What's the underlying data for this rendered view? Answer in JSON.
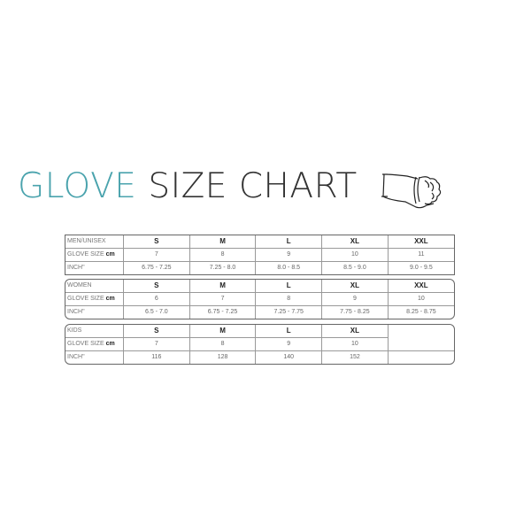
{
  "title": {
    "part1": "GLOVE",
    "part2": "SIZE CHART",
    "accent": "#4aa3ad"
  },
  "icon": "hand-measure-icon",
  "tables": [
    {
      "name": "MEN/UNISEX",
      "sizes": [
        "S",
        "M",
        "L",
        "XL",
        "XXL"
      ],
      "glove_label": "GLOVE SIZE",
      "unit": "cm",
      "cm": [
        "7",
        "8",
        "9",
        "10",
        "11"
      ],
      "inch_label": "INCH\"",
      "inch": [
        "6.75 - 7.25",
        "7.25 - 8.0",
        "8.0 - 8.5",
        "8.5 - 9.0",
        "9.0 - 9.5"
      ]
    },
    {
      "name": "WOMEN",
      "sizes": [
        "S",
        "M",
        "L",
        "XL",
        "XXL"
      ],
      "glove_label": "GLOVE SIZE",
      "unit": "cm",
      "cm": [
        "6",
        "7",
        "8",
        "9",
        "10"
      ],
      "inch_label": "INCH\"",
      "inch": [
        "6.5 - 7.0",
        "6.75 - 7.25",
        "7.25 - 7.75",
        "7.75 - 8.25",
        "8.25 - 8.75"
      ]
    },
    {
      "name": "KIDS",
      "sizes": [
        "S",
        "M",
        "L",
        "XL",
        ""
      ],
      "glove_label": "GLOVE SIZE",
      "unit": "cm",
      "cm": [
        "7",
        "8",
        "9",
        "10",
        ""
      ],
      "inch_label": "INCH\"",
      "inch": [
        "116",
        "128",
        "140",
        "152",
        ""
      ]
    }
  ]
}
